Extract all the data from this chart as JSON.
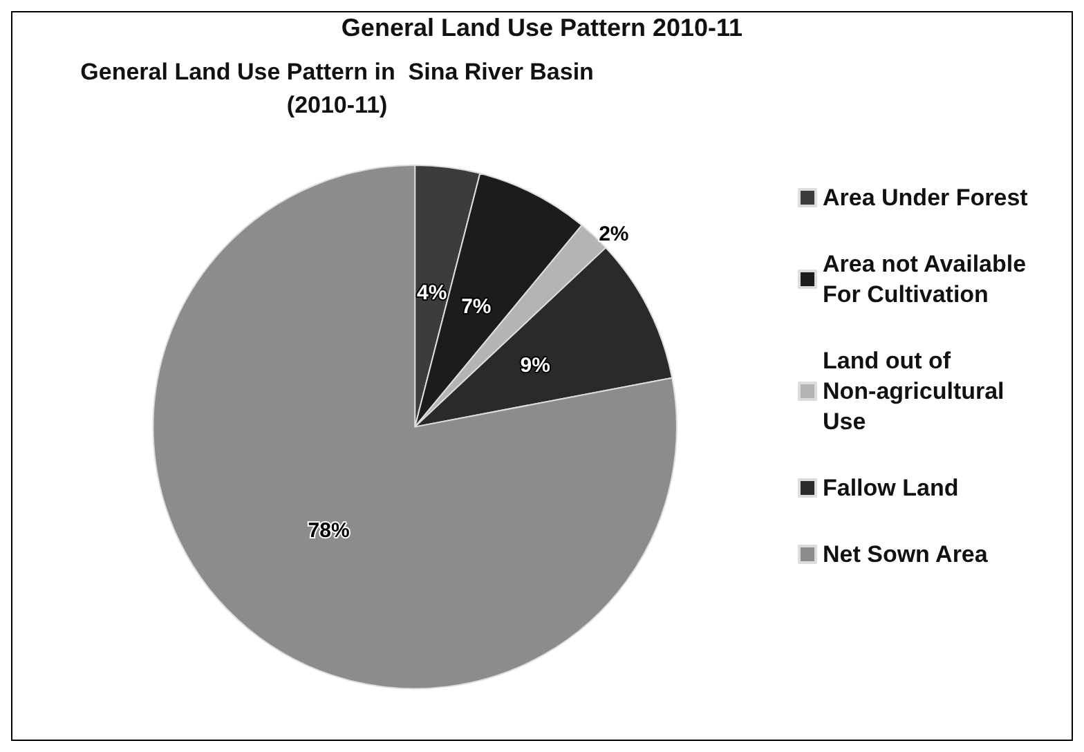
{
  "chart_data": {
    "type": "pie",
    "title": "General Land Use Pattern in  Sina River Basin\n(2010-11)",
    "annotations": [
      "General Land Use Pattern 2010-11"
    ],
    "categories": [
      "Area Under Forest",
      "Area not Available For Cultivation",
      "Land out of Non-agricultural Use",
      "Fallow Land",
      "Net Sown Area"
    ],
    "values": [
      4,
      7,
      2,
      9,
      78
    ],
    "colors": [
      "#3c3c3c",
      "#1c1c1c",
      "#b4b4b4",
      "#2a2a2a",
      "#8c8c8c"
    ],
    "value_labels": [
      "4%",
      "7%",
      "2%",
      "9%",
      "78%"
    ],
    "legend": "right"
  }
}
